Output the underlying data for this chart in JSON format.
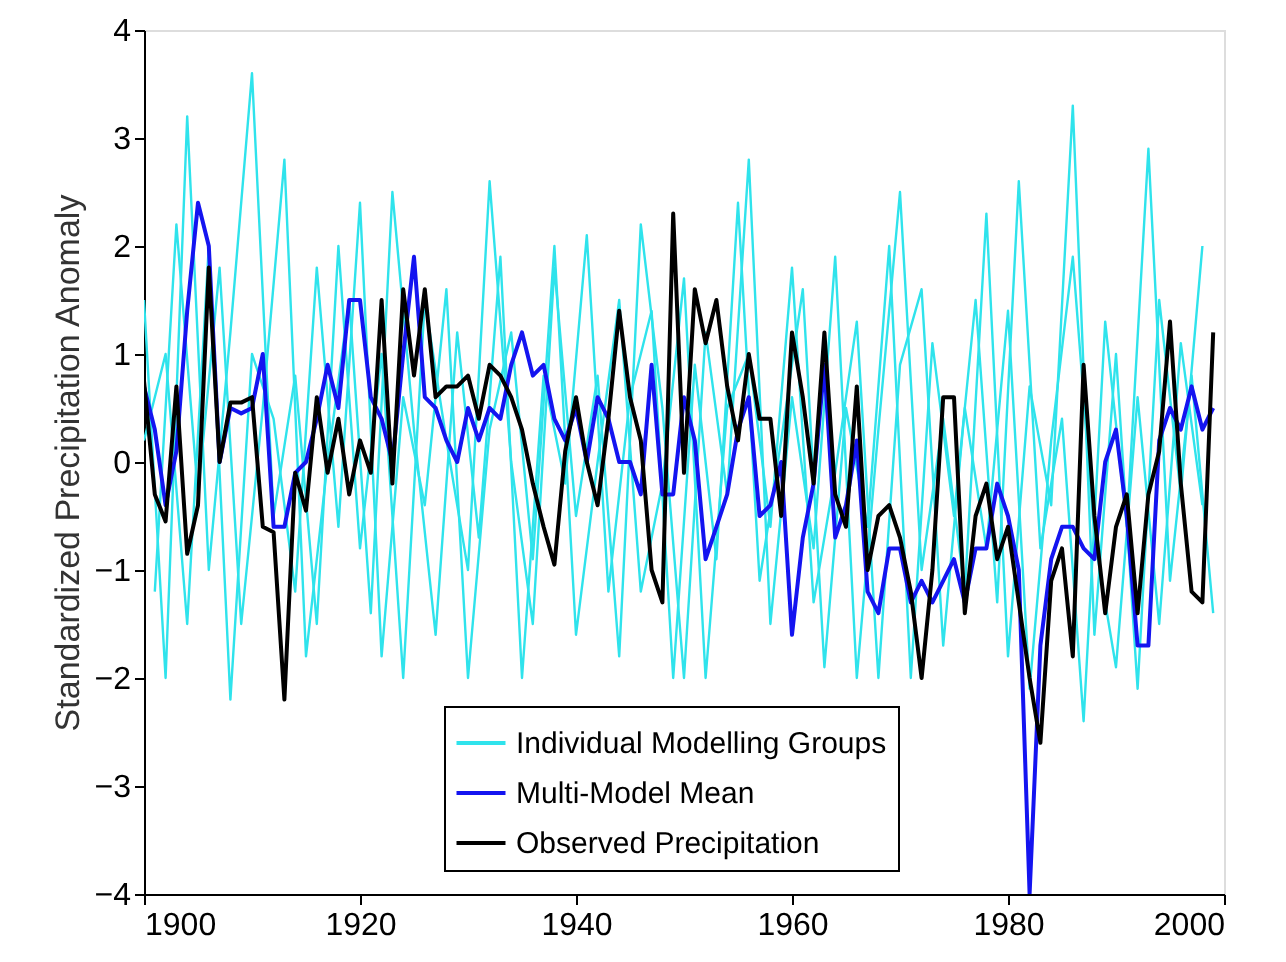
{
  "chart_data": {
    "type": "line",
    "ylabel": "Standardized Precipitation Anomaly",
    "xlim": [
      1900,
      2000
    ],
    "xticks": [
      1900,
      1920,
      1940,
      1960,
      1980,
      2000
    ],
    "ylim": [
      -4,
      4
    ],
    "yticks": [
      -4,
      -3,
      -2,
      -1,
      0,
      1,
      2,
      3,
      4
    ],
    "grid": false,
    "legend": "bottom",
    "line_style": "solid",
    "marker": "none",
    "series": [
      {
        "name": "Individual Modelling Groups",
        "color": "#2fe3ec",
        "x": [
          1900,
          1902,
          1904,
          1906,
          1908,
          1910,
          1912,
          1914,
          1916,
          1918,
          1920,
          1922,
          1924,
          1926,
          1928,
          1930,
          1932,
          1934,
          1936,
          1938,
          1940,
          1942,
          1944,
          1946,
          1948,
          1950,
          1952,
          1954,
          1956,
          1958,
          1960,
          1962,
          1964,
          1966,
          1968,
          1970,
          1972,
          1974,
          1976,
          1978,
          1980,
          1982,
          1984,
          1986,
          1988,
          1990,
          1992,
          1994,
          1996,
          1998
        ],
        "values": [
          1.5,
          -2.0,
          3.2,
          -1.0,
          1.2,
          3.6,
          -0.5,
          0.8,
          -1.5,
          2.0,
          -0.8,
          1.0,
          -2.0,
          1.5,
          0.2,
          -1.0,
          2.6,
          0.0,
          -1.5,
          1.8,
          -0.5,
          0.8,
          -1.8,
          2.2,
          0.5,
          -2.0,
          1.2,
          -0.3,
          2.8,
          -1.5,
          0.6,
          -0.8,
          1.9,
          -2.0,
          0.3,
          2.5,
          -1.0,
          0.4,
          -1.2,
          2.3,
          -1.8,
          0.7,
          -0.4,
          3.3,
          -1.6,
          1.0,
          -2.1,
          1.5,
          -0.3,
          2.0
        ]
      },
      {
        "color": "#2fe3ec",
        "x": [
          1901,
          1903,
          1905,
          1907,
          1909,
          1911,
          1913,
          1915,
          1917,
          1919,
          1921,
          1923,
          1925,
          1927,
          1929,
          1931,
          1933,
          1935,
          1937,
          1939,
          1941,
          1943,
          1945,
          1947,
          1949,
          1951,
          1953,
          1955,
          1957,
          1959,
          1961,
          1963,
          1965,
          1967,
          1969,
          1971,
          1973,
          1975,
          1977,
          1979,
          1981,
          1983,
          1985,
          1987,
          1989,
          1991,
          1993,
          1995,
          1997,
          1999
        ],
        "values": [
          -1.2,
          2.2,
          -0.3,
          1.8,
          -1.5,
          0.5,
          2.8,
          -1.8,
          0.0,
          1.5,
          -1.4,
          2.5,
          0.3,
          -1.6,
          1.2,
          -0.7,
          1.9,
          -2.0,
          0.8,
          -0.2,
          2.1,
          -1.2,
          0.6,
          1.4,
          -2.0,
          0.9,
          -0.9,
          2.4,
          -1.1,
          0.2,
          1.6,
          -1.9,
          0.5,
          -0.6,
          2.0,
          -2.0,
          1.1,
          -0.5,
          1.5,
          -1.3,
          2.6,
          -0.8,
          0.4,
          -2.4,
          1.3,
          -0.6,
          2.9,
          -1.1,
          0.8,
          -1.4
        ]
      },
      {
        "color": "#2fe3ec",
        "x": [
          1900,
          1902,
          1904,
          1906,
          1908,
          1910,
          1912,
          1914,
          1916,
          1918,
          1920,
          1922,
          1924,
          1926,
          1928,
          1930,
          1932,
          1934,
          1936,
          1938,
          1940,
          1942,
          1944,
          1946,
          1948,
          1950,
          1952,
          1954,
          1956,
          1958,
          1960,
          1962,
          1964,
          1966,
          1968,
          1970,
          1972,
          1974,
          1976,
          1978,
          1980,
          1982,
          1984,
          1986,
          1988,
          1990,
          1992,
          1994,
          1996,
          1998
        ],
        "values": [
          0.2,
          1.0,
          -1.5,
          2.0,
          -2.2,
          1.0,
          0.4,
          -1.2,
          1.8,
          -0.6,
          2.4,
          -1.8,
          0.6,
          -0.4,
          1.6,
          -2.0,
          0.3,
          1.2,
          -0.9,
          2.0,
          -1.6,
          0.0,
          1.5,
          -1.2,
          -0.2,
          1.7,
          -2.0,
          0.5,
          1.0,
          -0.6,
          1.8,
          -1.3,
          -0.1,
          1.3,
          -2.0,
          0.9,
          1.6,
          -1.7,
          0.5,
          -0.8,
          1.4,
          -2.1,
          0.2,
          1.9,
          -0.7,
          -1.9,
          0.6,
          -1.5,
          1.1,
          -0.4
        ]
      },
      {
        "name": "Multi-Model Mean",
        "color": "#1414f0",
        "x": [
          1900,
          1901,
          1902,
          1903,
          1904,
          1905,
          1906,
          1907,
          1908,
          1909,
          1910,
          1911,
          1912,
          1913,
          1914,
          1915,
          1916,
          1917,
          1918,
          1919,
          1920,
          1921,
          1922,
          1923,
          1924,
          1925,
          1926,
          1927,
          1928,
          1929,
          1930,
          1931,
          1932,
          1933,
          1934,
          1935,
          1936,
          1937,
          1938,
          1939,
          1940,
          1941,
          1942,
          1943,
          1944,
          1945,
          1946,
          1947,
          1948,
          1949,
          1950,
          1951,
          1952,
          1953,
          1954,
          1955,
          1956,
          1957,
          1958,
          1959,
          1960,
          1961,
          1962,
          1963,
          1964,
          1965,
          1966,
          1967,
          1968,
          1969,
          1970,
          1971,
          1972,
          1973,
          1974,
          1975,
          1976,
          1977,
          1978,
          1979,
          1980,
          1981,
          1982,
          1983,
          1984,
          1985,
          1986,
          1987,
          1988,
          1989,
          1990,
          1991,
          1992,
          1993,
          1994,
          1995,
          1996,
          1997,
          1998,
          1999
        ],
        "values": [
          0.7,
          0.3,
          -0.4,
          0.1,
          1.4,
          2.4,
          2.0,
          0.0,
          0.5,
          0.45,
          0.5,
          1.0,
          -0.6,
          -0.6,
          -0.1,
          0.0,
          0.4,
          0.9,
          0.5,
          1.5,
          1.5,
          0.6,
          0.4,
          0.0,
          1.0,
          1.9,
          0.6,
          0.5,
          0.2,
          0.0,
          0.5,
          0.2,
          0.5,
          0.4,
          0.9,
          1.2,
          0.8,
          0.9,
          0.4,
          0.2,
          0.5,
          0.0,
          0.6,
          0.4,
          0.0,
          0.0,
          -0.3,
          0.9,
          -0.3,
          -0.3,
          0.6,
          0.2,
          -0.9,
          -0.6,
          -0.3,
          0.3,
          0.6,
          -0.5,
          -0.4,
          0.0,
          -1.6,
          -0.7,
          -0.2,
          0.9,
          -0.7,
          -0.4,
          0.2,
          -1.2,
          -1.4,
          -0.8,
          -0.8,
          -1.3,
          -1.1,
          -1.3,
          -1.1,
          -0.9,
          -1.3,
          -0.8,
          -0.8,
          -0.2,
          -0.5,
          -1.0,
          -4.0,
          -1.7,
          -0.9,
          -0.6,
          -0.6,
          -0.8,
          -0.9,
          0.0,
          0.3,
          -0.5,
          -1.7,
          -1.7,
          0.2,
          0.5,
          0.3,
          0.7,
          0.3,
          0.5
        ]
      },
      {
        "name": "Observed Precipitation",
        "color": "#000000",
        "x": [
          1900,
          1901,
          1902,
          1903,
          1904,
          1905,
          1906,
          1907,
          1908,
          1909,
          1910,
          1911,
          1912,
          1913,
          1914,
          1915,
          1916,
          1917,
          1918,
          1919,
          1920,
          1921,
          1922,
          1923,
          1924,
          1925,
          1926,
          1927,
          1928,
          1929,
          1930,
          1931,
          1932,
          1933,
          1934,
          1935,
          1936,
          1937,
          1938,
          1939,
          1940,
          1941,
          1942,
          1943,
          1944,
          1945,
          1946,
          1947,
          1948,
          1949,
          1950,
          1951,
          1952,
          1953,
          1954,
          1955,
          1956,
          1957,
          1958,
          1959,
          1960,
          1961,
          1962,
          1963,
          1964,
          1965,
          1966,
          1967,
          1968,
          1969,
          1970,
          1971,
          1972,
          1973,
          1974,
          1975,
          1976,
          1977,
          1978,
          1979,
          1980,
          1981,
          1982,
          1983,
          1984,
          1985,
          1986,
          1987,
          1988,
          1989,
          1990,
          1991,
          1992,
          1993,
          1994,
          1995,
          1996,
          1997,
          1998,
          1999
        ],
        "values": [
          0.75,
          -0.3,
          -0.55,
          0.7,
          -0.85,
          -0.4,
          1.8,
          0.0,
          0.55,
          0.55,
          0.6,
          -0.6,
          -0.65,
          -2.2,
          -0.1,
          -0.45,
          0.6,
          -0.1,
          0.4,
          -0.3,
          0.2,
          -0.1,
          1.5,
          -0.2,
          1.6,
          0.8,
          1.6,
          0.6,
          0.7,
          0.7,
          0.8,
          0.4,
          0.9,
          0.8,
          0.6,
          0.3,
          -0.2,
          -0.6,
          -0.95,
          0.1,
          0.6,
          0.0,
          -0.4,
          0.4,
          1.4,
          0.6,
          0.2,
          -1.0,
          -1.3,
          2.3,
          -0.1,
          1.6,
          1.1,
          1.5,
          0.7,
          0.2,
          1.0,
          0.4,
          0.4,
          -0.5,
          1.2,
          0.6,
          -0.2,
          1.2,
          -0.3,
          -0.6,
          0.7,
          -1.0,
          -0.5,
          -0.4,
          -0.7,
          -1.2,
          -2.0,
          -1.0,
          0.6,
          0.6,
          -1.4,
          -0.5,
          -0.2,
          -0.9,
          -0.6,
          -1.3,
          -2.0,
          -2.6,
          -1.1,
          -0.8,
          -1.8,
          0.9,
          -0.5,
          -1.4,
          -0.6,
          -0.3,
          -1.4,
          -0.3,
          0.1,
          1.3,
          -0.2,
          -1.2,
          -1.3,
          1.2
        ]
      }
    ]
  }
}
